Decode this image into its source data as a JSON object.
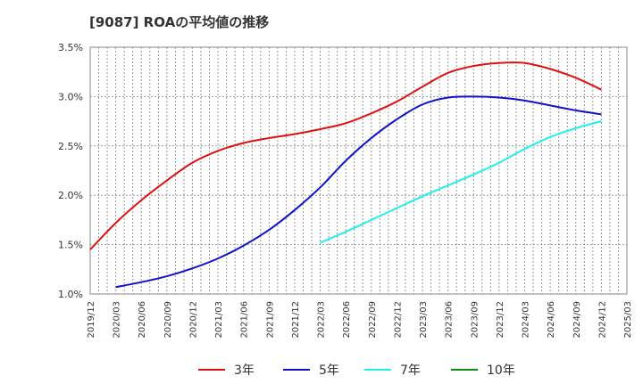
{
  "chart_data": {
    "type": "line",
    "title": "[9087]  ROAの平均値の推移",
    "xlabel": "",
    "ylabel": "",
    "ylim": [
      1.0,
      3.5
    ],
    "y_ticks": [
      "1.0%",
      "1.5%",
      "2.0%",
      "2.5%",
      "3.0%",
      "3.5%"
    ],
    "x": [
      "2019/12",
      "2020/03",
      "2020/06",
      "2020/09",
      "2020/12",
      "2021/03",
      "2021/06",
      "2021/09",
      "2021/12",
      "2022/03",
      "2022/06",
      "2022/09",
      "2022/12",
      "2023/03",
      "2023/06",
      "2023/09",
      "2023/12",
      "2024/03",
      "2024/06",
      "2024/09",
      "2024/12",
      "2025/03"
    ],
    "grid": true,
    "legend_position": "bottom",
    "series": [
      {
        "name": "3年",
        "color": "#dd1111",
        "values": [
          1.45,
          1.72,
          1.95,
          2.15,
          2.33,
          2.45,
          2.53,
          2.58,
          2.62,
          2.67,
          2.73,
          2.83,
          2.95,
          3.1,
          3.24,
          3.31,
          3.34,
          3.34,
          3.28,
          3.19,
          3.07,
          null
        ]
      },
      {
        "name": "5年",
        "color": "#1111cc",
        "values": [
          null,
          1.07,
          1.12,
          1.18,
          1.26,
          1.36,
          1.49,
          1.65,
          1.85,
          2.08,
          2.35,
          2.58,
          2.77,
          2.92,
          2.99,
          3.0,
          2.99,
          2.96,
          2.91,
          2.86,
          2.82,
          null
        ]
      },
      {
        "name": "7年",
        "color": "#22eeee",
        "values": [
          null,
          null,
          null,
          null,
          null,
          null,
          null,
          null,
          null,
          1.52,
          1.63,
          1.75,
          1.87,
          1.99,
          2.1,
          2.21,
          2.33,
          2.47,
          2.59,
          2.68,
          2.75,
          null
        ]
      },
      {
        "name": "10年",
        "color": "#118811",
        "values": [
          null,
          null,
          null,
          null,
          null,
          null,
          null,
          null,
          null,
          null,
          null,
          null,
          null,
          null,
          null,
          null,
          null,
          null,
          null,
          null,
          null,
          null
        ]
      }
    ]
  }
}
